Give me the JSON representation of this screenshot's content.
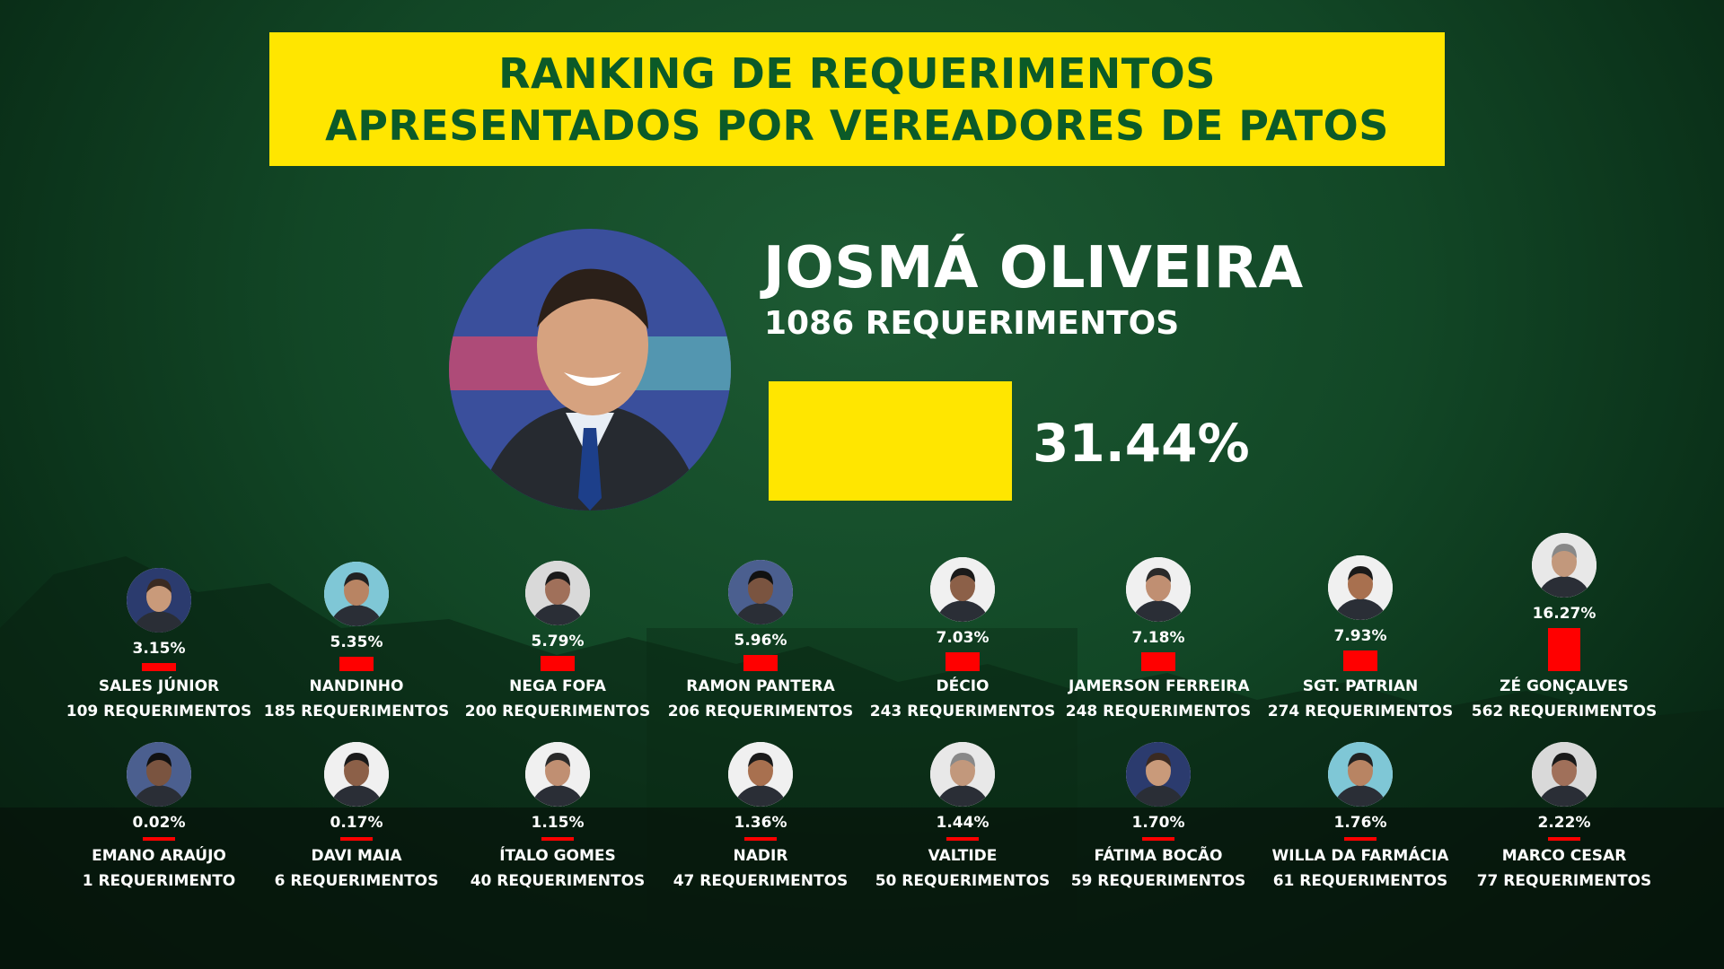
{
  "title": {
    "line1": "RANKING DE REQUERIMENTOS",
    "line2": "APRESENTADOS POR VEREADORES DE PATOS"
  },
  "colors": {
    "accent": "#ffe600",
    "bar": "#ff0000",
    "title_text": "#0b5a28",
    "background": "#124726"
  },
  "leader": {
    "name": "JOSMÁ OLIVEIRA",
    "count_label": "1086 REQUERIMENTOS",
    "percent_label": "31.44%",
    "value": 1086,
    "percent": 31.44
  },
  "chart_data": {
    "type": "bar",
    "title": "RANKING DE REQUERIMENTOS APRESENTADOS POR VEREADORES DE PATOS",
    "unit": "%",
    "rows": [
      [
        {
          "name": "SALES JÚNIOR",
          "pct_label": "3.15%",
          "req_label": "109 REQUERIMENTOS",
          "percent": 3.15,
          "requerimentos": 109
        },
        {
          "name": "NANDINHO",
          "pct_label": "5.35%",
          "req_label": "185 REQUERIMENTOS",
          "percent": 5.35,
          "requerimentos": 185
        },
        {
          "name": "NEGA FOFA",
          "pct_label": "5.79%",
          "req_label": "200 REQUERIMENTOS",
          "percent": 5.79,
          "requerimentos": 200
        },
        {
          "name": "RAMON PANTERA",
          "pct_label": "5.96%",
          "req_label": "206 REQUERIMENTOS",
          "percent": 5.96,
          "requerimentos": 206
        },
        {
          "name": "DÉCIO",
          "pct_label": "7.03%",
          "req_label": "243 REQUERIMENTOS",
          "percent": 7.03,
          "requerimentos": 243
        },
        {
          "name": "JAMERSON FERREIRA",
          "pct_label": "7.18%",
          "req_label": "248 REQUERIMENTOS",
          "percent": 7.18,
          "requerimentos": 248
        },
        {
          "name": "SGT. PATRIAN",
          "pct_label": "7.93%",
          "req_label": "274 REQUERIMENTOS",
          "percent": 7.93,
          "requerimentos": 274
        },
        {
          "name": "ZÉ GONÇALVES",
          "pct_label": "16.27%",
          "req_label": "562 REQUERIMENTOS",
          "percent": 16.27,
          "requerimentos": 562
        }
      ],
      [
        {
          "name": "EMANO ARAÚJO",
          "pct_label": "0.02%",
          "req_label": "1 REQUERIMENTO",
          "percent": 0.02,
          "requerimentos": 1
        },
        {
          "name": "DAVI MAIA",
          "pct_label": "0.17%",
          "req_label": "6 REQUERIMENTOS",
          "percent": 0.17,
          "requerimentos": 6
        },
        {
          "name": "ÍTALO GOMES",
          "pct_label": "1.15%",
          "req_label": "40 REQUERIMENTOS",
          "percent": 1.15,
          "requerimentos": 40
        },
        {
          "name": "NADIR",
          "pct_label": "1.36%",
          "req_label": "47 REQUERIMENTOS",
          "percent": 1.36,
          "requerimentos": 47
        },
        {
          "name": "VALTIDE",
          "pct_label": "1.44%",
          "req_label": "50 REQUERIMENTOS",
          "percent": 1.44,
          "requerimentos": 50
        },
        {
          "name": "FÁTIMA BOCÃO",
          "pct_label": "1.70%",
          "req_label": "59 REQUERIMENTOS",
          "percent": 1.7,
          "requerimentos": 59
        },
        {
          "name": "WILLA DA FARMÁCIA",
          "pct_label": "1.76%",
          "req_label": "61 REQUERIMENTOS",
          "percent": 1.76,
          "requerimentos": 61
        },
        {
          "name": "MARCO CESAR",
          "pct_label": "2.22%",
          "req_label": "77 REQUERIMENTOS",
          "percent": 2.22,
          "requerimentos": 77
        }
      ]
    ]
  }
}
